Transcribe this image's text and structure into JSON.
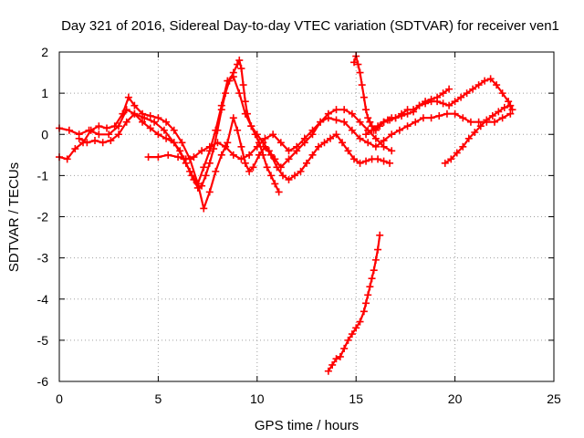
{
  "chart_data": {
    "type": "scatter",
    "title": "Day 321 of 2016, Sidereal Day-to-day VTEC variation (SDTVAR) for receiver ven1",
    "xlabel": "GPS time / hours",
    "ylabel": "SDTVAR / TECUs",
    "xlim": [
      0,
      25
    ],
    "ylim": [
      -6,
      2
    ],
    "x_ticks": [
      "0",
      "5",
      "10",
      "15",
      "20",
      "25"
    ],
    "y_ticks": [
      "-6",
      "-5",
      "-4",
      "-3",
      "-2",
      "-1",
      "0",
      "1",
      "2"
    ],
    "grid": true,
    "marker": "plus",
    "color": "#ff0000",
    "series": [
      {
        "x": [
          0,
          0.5,
          1.0,
          1.5,
          2.0,
          2.5,
          3.0,
          3.4,
          3.8,
          4.3,
          4.8,
          5.3,
          5.8,
          6.3,
          6.7,
          7.0,
          7.3,
          7.6,
          7.9,
          8.2,
          8.5,
          8.8,
          9.1,
          9.4,
          9.7,
          10.0,
          10.3,
          10.6,
          10.9,
          11.2,
          11.6,
          12.0,
          12.4,
          12.8,
          13.2,
          13.6,
          14.0,
          14.4,
          14.8,
          15.2,
          15.6,
          16.0,
          16.4,
          16.8
        ],
        "y": [
          0.15,
          0.1,
          0.0,
          0.1,
          0.0,
          0.0,
          0.2,
          0.6,
          0.5,
          0.4,
          0.3,
          0.1,
          -0.2,
          -0.6,
          -1.0,
          -1.2,
          -0.8,
          -0.4,
          0.1,
          0.7,
          1.3,
          1.4,
          1.0,
          0.5,
          0.2,
          0.0,
          -0.2,
          -0.4,
          -0.6,
          -0.8,
          -0.6,
          -0.4,
          -0.2,
          0.0,
          0.3,
          0.5,
          0.6,
          0.6,
          0.5,
          0.3,
          0.1,
          -0.1,
          -0.3,
          -0.4
        ]
      },
      {
        "x": [
          0,
          0.4,
          0.8,
          1.2,
          1.6,
          2.0,
          2.4,
          2.8,
          3.2,
          3.5,
          3.8,
          4.2,
          4.6,
          5.0,
          5.4,
          5.8,
          6.2,
          6.6,
          7.0,
          7.3,
          7.6,
          7.9,
          8.2,
          8.5,
          8.8,
          9.0,
          9.2,
          9.4,
          9.6,
          9.8,
          10.1,
          10.4,
          10.7,
          11.0,
          11.3,
          11.6,
          11.9,
          12.2,
          12.5,
          12.8,
          13.1,
          13.4,
          13.7,
          14.0,
          14.3,
          14.6,
          14.9,
          15.2,
          15.5,
          15.8,
          16.1,
          16.4,
          16.7
        ],
        "y": [
          -0.55,
          -0.6,
          -0.35,
          -0.2,
          0.1,
          0.2,
          0.15,
          0.2,
          0.5,
          0.9,
          0.7,
          0.5,
          0.45,
          0.4,
          0.3,
          0.1,
          -0.2,
          -0.6,
          -1.2,
          -1.8,
          -1.4,
          -0.9,
          -0.5,
          -0.2,
          0.4,
          0.1,
          -0.3,
          -0.7,
          -0.9,
          -0.8,
          -0.5,
          -0.3,
          -0.5,
          -0.8,
          -1.0,
          -1.1,
          -1.0,
          -0.9,
          -0.7,
          -0.5,
          -0.3,
          -0.2,
          -0.1,
          0.0,
          -0.2,
          -0.4,
          -0.6,
          -0.7,
          -0.65,
          -0.6,
          -0.6,
          -0.65,
          -0.7
        ]
      },
      {
        "x": [
          1.0,
          1.4,
          1.8,
          2.2,
          2.6,
          3.0,
          3.4,
          3.8,
          4.2,
          4.6,
          5.0,
          5.4,
          5.8,
          6.1,
          6.4,
          6.6,
          6.8,
          7.0,
          7.2,
          7.4,
          7.6,
          7.8,
          8.0,
          8.2,
          8.4,
          8.6,
          8.8,
          9.0,
          9.1,
          9.2,
          9.3,
          9.4,
          9.5,
          9.7,
          9.9,
          10.1,
          10.3,
          10.5,
          10.7,
          10.9,
          11.1
        ],
        "y": [
          -0.1,
          -0.2,
          -0.15,
          -0.2,
          -0.15,
          0.0,
          0.3,
          0.5,
          0.3,
          0.15,
          0.0,
          -0.1,
          -0.2,
          -0.4,
          -0.7,
          -0.9,
          -1.1,
          -1.3,
          -1.25,
          -1.0,
          -0.7,
          -0.35,
          0.1,
          0.6,
          1.0,
          1.3,
          1.5,
          1.7,
          1.8,
          1.6,
          1.2,
          0.8,
          0.5,
          0.2,
          0.0,
          -0.2,
          -0.5,
          -0.8,
          -1.0,
          -1.2,
          -1.4
        ]
      },
      {
        "x": [
          4.5,
          5.0,
          5.5,
          6.0,
          6.4,
          6.8,
          7.2,
          7.6,
          8.0,
          8.4,
          8.8,
          9.2,
          9.6,
          10.0,
          10.4,
          10.8,
          11.2,
          11.6,
          12.0,
          12.4,
          12.8,
          13.2,
          13.6,
          14.0,
          14.4,
          14.8,
          15.2,
          15.6,
          16.0,
          16.4,
          16.8,
          17.2,
          17.6,
          18.0,
          18.4,
          18.8,
          19.2,
          19.6,
          20.0,
          20.4,
          20.8,
          21.2,
          21.6,
          22.0,
          22.4,
          22.8
        ],
        "y": [
          -0.55,
          -0.55,
          -0.5,
          -0.55,
          -0.6,
          -0.55,
          -0.4,
          -0.3,
          -0.2,
          -0.3,
          -0.5,
          -0.6,
          -0.5,
          -0.3,
          -0.1,
          0.0,
          -0.2,
          -0.4,
          -0.3,
          -0.1,
          0.1,
          0.3,
          0.4,
          0.35,
          0.3,
          0.1,
          -0.1,
          -0.2,
          -0.3,
          -0.15,
          0.0,
          0.1,
          0.2,
          0.3,
          0.4,
          0.4,
          0.45,
          0.5,
          0.5,
          0.4,
          0.3,
          0.3,
          0.3,
          0.3,
          0.4,
          0.5
        ]
      },
      {
        "x": [
          14.9,
          15.0,
          15.1,
          15.2,
          15.3,
          15.4,
          15.5,
          15.6,
          15.7,
          15.8,
          15.9,
          16.0,
          16.2,
          16.4,
          16.6,
          16.8,
          17.0,
          17.3,
          17.6,
          17.9,
          18.2,
          18.5,
          18.8,
          19.1,
          19.4,
          19.7
        ],
        "y": [
          1.75,
          1.9,
          1.7,
          1.5,
          1.2,
          0.9,
          0.6,
          0.4,
          0.3,
          0.2,
          0.1,
          0.1,
          0.2,
          0.3,
          0.35,
          0.4,
          0.4,
          0.45,
          0.5,
          0.55,
          0.7,
          0.8,
          0.85,
          0.9,
          1.0,
          1.1
        ]
      },
      {
        "x": [
          15.5,
          15.8,
          16.1,
          16.4,
          16.7,
          17.0,
          17.3,
          17.6,
          17.9,
          18.2,
          18.5,
          18.8,
          19.1,
          19.4,
          19.7,
          20.0,
          20.3,
          20.6,
          20.9,
          21.2,
          21.5,
          21.8,
          22.1,
          22.4,
          22.7,
          22.9
        ],
        "y": [
          0.0,
          0.1,
          0.2,
          0.3,
          0.35,
          0.4,
          0.5,
          0.6,
          0.6,
          0.7,
          0.75,
          0.8,
          0.8,
          0.75,
          0.7,
          0.8,
          0.9,
          1.0,
          1.1,
          1.2,
          1.3,
          1.35,
          1.2,
          1.0,
          0.8,
          0.6
        ]
      },
      {
        "x": [
          13.6,
          13.8,
          14.0,
          14.2,
          14.4,
          14.6,
          14.8,
          15.0,
          15.2,
          15.4,
          15.5,
          15.6,
          15.7,
          15.8,
          15.9,
          16.0,
          16.1,
          16.2
        ],
        "y": [
          -5.75,
          -5.6,
          -5.45,
          -5.4,
          -5.2,
          -5.0,
          -4.85,
          -4.7,
          -4.55,
          -4.3,
          -4.1,
          -3.9,
          -3.7,
          -3.5,
          -3.3,
          -3.05,
          -2.8,
          -2.45
        ]
      },
      {
        "x": [
          19.5,
          19.8,
          20.1,
          20.4,
          20.7,
          21.0,
          21.3,
          21.6,
          21.9,
          22.2,
          22.5,
          22.8
        ],
        "y": [
          -0.7,
          -0.6,
          -0.45,
          -0.3,
          -0.1,
          0.05,
          0.2,
          0.35,
          0.45,
          0.55,
          0.65,
          0.7
        ]
      }
    ]
  }
}
